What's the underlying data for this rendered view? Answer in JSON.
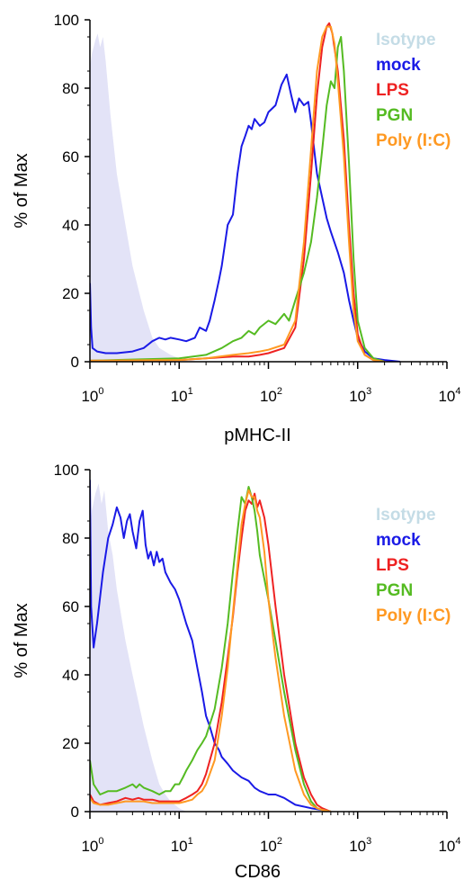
{
  "chart_data": [
    {
      "type": "line",
      "xlabel": "pMHC-II",
      "ylabel": "% of Max",
      "xscale": "log",
      "xlim": [
        1,
        10000
      ],
      "ylim": [
        0,
        100
      ],
      "xticks": [
        {
          "value": 1,
          "base": "10",
          "exp": "0"
        },
        {
          "value": 10,
          "base": "10",
          "exp": "1"
        },
        {
          "value": 100,
          "base": "10",
          "exp": "2"
        },
        {
          "value": 1000,
          "base": "10",
          "exp": "3"
        },
        {
          "value": 10000,
          "base": "10",
          "exp": "4"
        }
      ],
      "yticks": [
        "0",
        "20",
        "40",
        "60",
        "80",
        "100"
      ],
      "legend_position": "top-right",
      "series": [
        {
          "name": "Isotype",
          "color": "#c4dce6",
          "fill": "#e3e3f7",
          "style": "filled",
          "x": [
            1,
            1.05,
            1.15,
            1.22,
            1.3,
            1.4,
            1.5,
            1.7,
            2,
            2.5,
            3,
            4,
            5,
            6,
            8,
            10,
            12,
            15,
            20
          ],
          "y": [
            86,
            90,
            94,
            96,
            92,
            95,
            88,
            72,
            55,
            40,
            28,
            15,
            7,
            4,
            2,
            1,
            0.5,
            0.2,
            0
          ]
        },
        {
          "name": "mock",
          "color": "#1a1ae6",
          "style": "line",
          "x": [
            1,
            1.03,
            1.07,
            1.2,
            1.5,
            2,
            3,
            4,
            5,
            6,
            7,
            8,
            10,
            12,
            15,
            17,
            20,
            22,
            25,
            28,
            30,
            35,
            40,
            45,
            50,
            55,
            60,
            65,
            70,
            80,
            90,
            100,
            120,
            140,
            160,
            180,
            200,
            220,
            250,
            280,
            300,
            350,
            400,
            450,
            500,
            600,
            700,
            800,
            900,
            1000,
            1200,
            1500,
            2000,
            3000
          ],
          "y": [
            23,
            10,
            4,
            3,
            2.5,
            2.5,
            3,
            4,
            6,
            7,
            6.5,
            7,
            6.5,
            6,
            7,
            10,
            9,
            12,
            18,
            24,
            28,
            40,
            43,
            55,
            63,
            66,
            69,
            68,
            71,
            69,
            70,
            73,
            75,
            81,
            84,
            78,
            73,
            77,
            75,
            76,
            70,
            55,
            48,
            42,
            38,
            32,
            26,
            18,
            12,
            7,
            3,
            1,
            0.5,
            0
          ]
        },
        {
          "name": "LPS",
          "color": "#ee2222",
          "style": "line",
          "x": [
            1,
            10,
            20,
            40,
            60,
            80,
            100,
            150,
            200,
            250,
            300,
            350,
            400,
            450,
            480,
            520,
            600,
            700,
            800,
            900,
            1000,
            1200,
            1500,
            2000
          ],
          "y": [
            0.3,
            0.5,
            1,
            1.5,
            1.5,
            2,
            2.5,
            4,
            10,
            30,
            55,
            78,
            92,
            98,
            99,
            96,
            85,
            65,
            40,
            20,
            8,
            2,
            0.5,
            0
          ]
        },
        {
          "name": "PGN",
          "color": "#55bb22",
          "style": "line",
          "x": [
            1,
            10,
            20,
            30,
            40,
            50,
            60,
            70,
            80,
            100,
            120,
            150,
            170,
            200,
            250,
            300,
            350,
            400,
            450,
            500,
            550,
            600,
            650,
            700,
            800,
            900,
            1000,
            1200,
            1500,
            2000
          ],
          "y": [
            0.3,
            1,
            2,
            4,
            6,
            7,
            9,
            8,
            10,
            12,
            11,
            14,
            12,
            18,
            26,
            35,
            48,
            62,
            75,
            82,
            80,
            92,
            95,
            85,
            58,
            30,
            12,
            4,
            1,
            0
          ]
        },
        {
          "name": "Poly (I:C)",
          "color": "#ff9922",
          "style": "line",
          "x": [
            1,
            10,
            20,
            40,
            60,
            80,
            100,
            150,
            200,
            250,
            300,
            350,
            400,
            450,
            500,
            550,
            600,
            700,
            800,
            900,
            1000,
            1200,
            1500,
            2000
          ],
          "y": [
            0.3,
            0.5,
            1,
            2,
            2.5,
            3,
            3.5,
            5,
            12,
            35,
            62,
            85,
            95,
            98,
            98,
            93,
            82,
            60,
            35,
            15,
            6,
            2,
            0.5,
            0
          ]
        }
      ]
    },
    {
      "type": "line",
      "xlabel": "CD86",
      "ylabel": "% of Max",
      "xscale": "log",
      "xlim": [
        1,
        10000
      ],
      "ylim": [
        0,
        100
      ],
      "xticks": [
        {
          "value": 1,
          "base": "10",
          "exp": "0"
        },
        {
          "value": 10,
          "base": "10",
          "exp": "1"
        },
        {
          "value": 100,
          "base": "10",
          "exp": "2"
        },
        {
          "value": 1000,
          "base": "10",
          "exp": "3"
        },
        {
          "value": 10000,
          "base": "10",
          "exp": "4"
        }
      ],
      "yticks": [
        "0",
        "20",
        "40",
        "60",
        "80",
        "100"
      ],
      "legend_position": "top-right",
      "series": [
        {
          "name": "Isotype",
          "color": "#c4dce6",
          "fill": "#e3e3f7",
          "style": "filled",
          "x": [
            1,
            1.05,
            1.15,
            1.25,
            1.35,
            1.45,
            1.6,
            1.8,
            2,
            2.5,
            3,
            4,
            5,
            6,
            7,
            8,
            10,
            12
          ],
          "y": [
            82,
            88,
            93,
            96,
            90,
            94,
            82,
            75,
            65,
            50,
            40,
            25,
            15,
            8,
            5,
            3,
            1,
            0
          ]
        },
        {
          "name": "mock",
          "color": "#1a1ae6",
          "style": "line",
          "x": [
            1,
            1.03,
            1.1,
            1.2,
            1.4,
            1.6,
            1.8,
            2,
            2.2,
            2.4,
            2.6,
            2.8,
            3,
            3.3,
            3.6,
            3.9,
            4.2,
            4.5,
            4.8,
            5.2,
            5.6,
            6,
            6.5,
            7,
            8,
            9,
            10,
            12,
            14,
            16,
            18,
            20,
            22,
            25,
            28,
            30,
            35,
            40,
            50,
            60,
            70,
            80,
            100,
            120,
            150,
            200,
            300,
            400,
            500
          ],
          "y": [
            97,
            60,
            48,
            55,
            70,
            80,
            84,
            89,
            86,
            80,
            85,
            87,
            82,
            77,
            85,
            88,
            78,
            74,
            76,
            72,
            76,
            73,
            74,
            70,
            67,
            65,
            62,
            55,
            50,
            42,
            35,
            28,
            25,
            20,
            18,
            16,
            14,
            12,
            10,
            9,
            7,
            6,
            5,
            5,
            4,
            2,
            1,
            0.5,
            0
          ]
        },
        {
          "name": "LPS",
          "color": "#ee2222",
          "style": "line",
          "x": [
            1,
            1.1,
            1.3,
            1.6,
            2,
            2.5,
            3,
            3.5,
            4,
            5,
            6,
            8,
            10,
            12,
            14,
            16,
            18,
            20,
            25,
            30,
            35,
            40,
            45,
            50,
            55,
            60,
            65,
            70,
            75,
            80,
            90,
            100,
            120,
            150,
            200,
            250,
            300,
            350,
            400,
            500
          ],
          "y": [
            5,
            3,
            2,
            2.5,
            3,
            4,
            3.5,
            4,
            3.5,
            3.5,
            3,
            3,
            3,
            4,
            5,
            6,
            8,
            11,
            20,
            32,
            45,
            57,
            70,
            80,
            88,
            91,
            90,
            93,
            89,
            91,
            86,
            78,
            60,
            40,
            20,
            10,
            5,
            2,
            1,
            0
          ]
        },
        {
          "name": "PGN",
          "color": "#55bb22",
          "style": "line",
          "x": [
            1,
            1.1,
            1.3,
            1.6,
            2,
            2.5,
            3,
            3.3,
            3.6,
            4,
            5,
            6,
            7,
            8,
            9,
            10,
            11,
            12,
            14,
            16,
            18,
            20,
            25,
            30,
            35,
            40,
            45,
            50,
            55,
            60,
            65,
            70,
            75,
            80,
            90,
            100,
            120,
            150,
            200,
            250,
            300,
            350,
            400,
            500
          ],
          "y": [
            15,
            8,
            5,
            6,
            6,
            7,
            8,
            7,
            8,
            7,
            6,
            5,
            6,
            6,
            8,
            8,
            10,
            12,
            15,
            18,
            20,
            22,
            30,
            42,
            55,
            70,
            82,
            92,
            90,
            95,
            92,
            88,
            82,
            75,
            68,
            62,
            50,
            35,
            18,
            8,
            3,
            1,
            0.5,
            0
          ]
        },
        {
          "name": "Poly (I:C)",
          "color": "#ff9922",
          "style": "line",
          "x": [
            1,
            1.1,
            1.3,
            1.6,
            2,
            2.5,
            3,
            3.5,
            4,
            5,
            6,
            8,
            10,
            12,
            14,
            16,
            18,
            20,
            25,
            30,
            35,
            40,
            45,
            50,
            55,
            60,
            65,
            70,
            75,
            80,
            90,
            100,
            120,
            150,
            200,
            250,
            300,
            350,
            400,
            500
          ],
          "y": [
            4,
            2.5,
            2,
            2,
            2.5,
            3,
            3,
            3,
            3,
            2.5,
            2.5,
            2.5,
            2.5,
            3,
            3.5,
            5,
            6,
            8,
            15,
            28,
            42,
            58,
            72,
            84,
            90,
            94,
            92,
            92,
            88,
            86,
            76,
            62,
            45,
            28,
            12,
            5,
            2,
            1,
            0.5,
            0
          ]
        }
      ]
    }
  ]
}
